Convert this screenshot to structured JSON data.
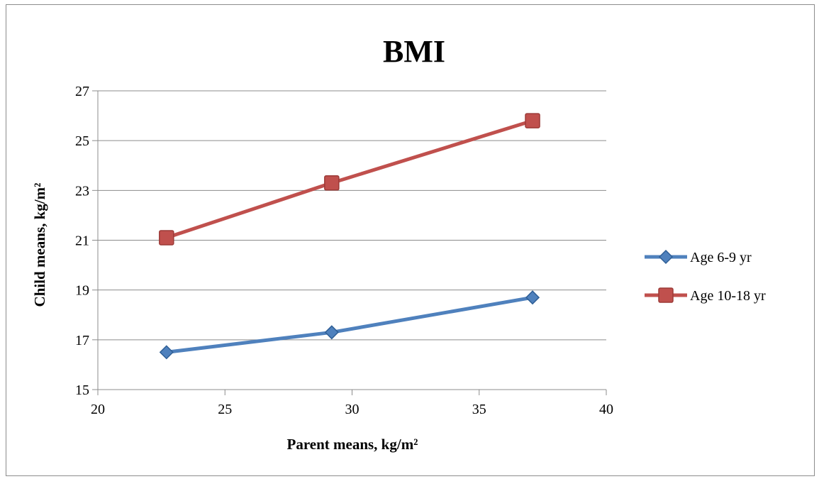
{
  "chart_data": {
    "type": "line",
    "title": "BMI",
    "xlabel": "Parent means, kg/m²",
    "ylabel": "Child means, kg/m²",
    "xlim": [
      20,
      40
    ],
    "ylim": [
      15,
      27
    ],
    "xticks": [
      "20",
      "25",
      "30",
      "35",
      "40"
    ],
    "yticks": [
      "15",
      "17",
      "19",
      "21",
      "23",
      "25",
      "27"
    ],
    "grid": "horizontal",
    "legend_position": "right",
    "series": [
      {
        "name": "Age 6-9 yr",
        "color": "#4f81bd",
        "marker": "diamond",
        "x": [
          22.7,
          29.2,
          37.1
        ],
        "y": [
          16.5,
          17.3,
          18.7
        ]
      },
      {
        "name": "Age 10-18 yr",
        "color": "#c0504d",
        "marker": "square",
        "x": [
          22.7,
          29.2,
          37.1
        ],
        "y": [
          21.1,
          23.3,
          25.8
        ]
      }
    ]
  }
}
